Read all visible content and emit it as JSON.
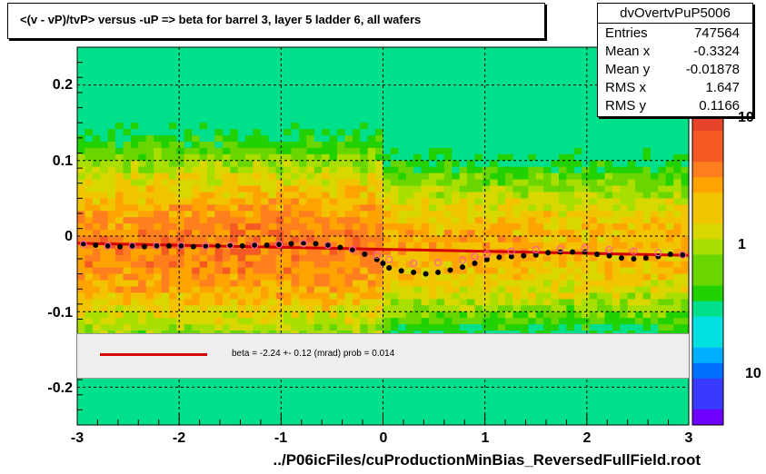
{
  "title": "<(v - vP)/tvP>  versus  -uP => beta for barrel 3, layer 5 ladder 6, all wafers",
  "stats": {
    "name": "dvOvertvPuP5006",
    "rows": [
      {
        "key": "Entries",
        "value": "747564"
      },
      {
        "key": "Mean x",
        "value": "-0.3324"
      },
      {
        "key": "Mean y",
        "value": "-0.01878"
      },
      {
        "key": "RMS x",
        "value": "1.647"
      },
      {
        "key": "RMS y",
        "value": "0.1166"
      }
    ]
  },
  "fit_text": "beta =   -2.24 +-  0.12 (mrad) prob = 0.014",
  "colors": {
    "fit_line": "#d40000",
    "profile_points": "#000000",
    "profile_open": "#ff5fa0"
  },
  "chart_data": {
    "type": "heatmap",
    "xlabel": "../P06icFiles/cuProductionMinBias_ReversedFullField.root",
    "ylabel": "",
    "xlim": [
      -3,
      3
    ],
    "ylim": [
      -0.25,
      0.25
    ],
    "x_ticks": [
      "-3",
      "-2",
      "-1",
      "0",
      "1",
      "2",
      "3"
    ],
    "y_ticks": [
      "0.2",
      "0.1",
      "0",
      "-0.1",
      "-0.2"
    ],
    "z_ticks": [
      "10",
      "1",
      "10"
    ],
    "z_scale": "log",
    "grid": true,
    "fit": {
      "slope_label": "beta",
      "x": [
        -3,
        3
      ],
      "y": [
        -0.0095,
        -0.0255
      ]
    },
    "series": [
      {
        "style": "filled",
        "x": [
          -2.94,
          -2.82,
          -2.7,
          -2.58,
          -2.46,
          -2.34,
          -2.22,
          -2.1,
          -1.98,
          -1.86,
          -1.74,
          -1.62,
          -1.5,
          -1.38,
          -1.26,
          -1.14,
          -1.02,
          -0.9,
          -0.78,
          -0.66,
          -0.54,
          -0.42,
          -0.3,
          -0.18,
          -0.06,
          0.0,
          0.06,
          0.18,
          0.3,
          0.42,
          0.54,
          0.66,
          0.78,
          0.9,
          1.02,
          1.14,
          1.26,
          1.38,
          1.5,
          1.62,
          1.74,
          1.86,
          1.98,
          2.1,
          2.22,
          2.34,
          2.46,
          2.58,
          2.7,
          2.82,
          2.94
        ],
        "y": [
          -0.01,
          -0.012,
          -0.013,
          -0.014,
          -0.013,
          -0.014,
          -0.013,
          -0.013,
          -0.013,
          -0.014,
          -0.014,
          -0.013,
          -0.013,
          -0.013,
          -0.012,
          -0.012,
          -0.011,
          -0.01,
          -0.009,
          -0.01,
          -0.012,
          -0.015,
          -0.019,
          -0.024,
          -0.031,
          -0.036,
          -0.042,
          -0.046,
          -0.048,
          -0.05,
          -0.048,
          -0.045,
          -0.041,
          -0.036,
          -0.031,
          -0.028,
          -0.027,
          -0.026,
          -0.025,
          -0.022,
          -0.021,
          -0.021,
          -0.021,
          -0.024,
          -0.026,
          -0.029,
          -0.03,
          -0.029,
          -0.027,
          -0.024,
          -0.025
        ]
      },
      {
        "style": "open",
        "x": [
          -2.94,
          -2.7,
          -2.46,
          -2.22,
          -1.98,
          -1.74,
          -1.5,
          -1.26,
          -1.02,
          -0.78,
          -0.54,
          -0.3,
          -0.06,
          0.06,
          0.3,
          0.54,
          0.78,
          0.9,
          1.02,
          1.26,
          1.5,
          1.74,
          1.98,
          2.22,
          2.46,
          2.7,
          2.94
        ],
        "y": [
          -0.011,
          -0.013,
          -0.013,
          -0.013,
          -0.013,
          -0.013,
          -0.012,
          -0.012,
          -0.011,
          -0.01,
          -0.012,
          -0.018,
          -0.025,
          -0.031,
          -0.036,
          -0.035,
          -0.032,
          -0.027,
          -0.024,
          -0.02,
          -0.018,
          -0.017,
          -0.016,
          -0.018,
          -0.02,
          -0.022,
          -0.025
        ]
      }
    ]
  }
}
